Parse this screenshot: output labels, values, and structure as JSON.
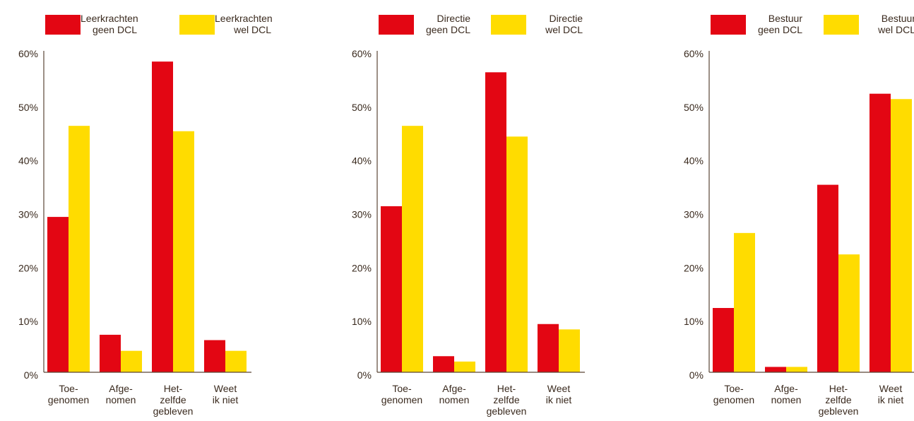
{
  "colors": {
    "geen": "#e30613",
    "wel": "#ffdc00",
    "axis": "#5a4636",
    "text": "#3a2a1e"
  },
  "chart_data": [
    {
      "type": "bar",
      "categories": [
        [
          "Toe-",
          "genomen"
        ],
        [
          "Afge-",
          "nomen"
        ],
        [
          "Het-",
          "zelfde",
          "gebleven"
        ],
        [
          "Weet",
          "ik niet"
        ]
      ],
      "yticks": [
        "0%",
        "10%",
        "20%",
        "30%",
        "40%",
        "50%",
        "60%"
      ],
      "ylim": [
        0,
        60
      ],
      "legend": "top",
      "series": [
        {
          "name": [
            "Leerkrachten",
            "geen DCL"
          ],
          "values": [
            29,
            7,
            58,
            6
          ]
        },
        {
          "name": [
            "Leerkrachten",
            "wel DCL"
          ],
          "values": [
            46,
            4,
            45,
            4
          ]
        }
      ]
    },
    {
      "type": "bar",
      "categories": [
        [
          "Toe-",
          "genomen"
        ],
        [
          "Afge-",
          "nomen"
        ],
        [
          "Het-",
          "zelfde",
          "gebleven"
        ],
        [
          "Weet",
          "ik niet"
        ]
      ],
      "yticks": [
        "0%",
        "10%",
        "20%",
        "30%",
        "40%",
        "50%",
        "60%"
      ],
      "ylim": [
        0,
        60
      ],
      "legend": "top",
      "series": [
        {
          "name": [
            "Directie",
            "geen DCL"
          ],
          "values": [
            31,
            3,
            56,
            9
          ]
        },
        {
          "name": [
            "Directie",
            "wel DCL"
          ],
          "values": [
            46,
            2,
            44,
            8
          ]
        }
      ]
    },
    {
      "type": "bar",
      "categories": [
        [
          "Toe-",
          "genomen"
        ],
        [
          "Afge-",
          "nomen"
        ],
        [
          "Het-",
          "zelfde",
          "gebleven"
        ],
        [
          "Weet",
          "ik niet"
        ]
      ],
      "yticks": [
        "0%",
        "10%",
        "20%",
        "30%",
        "40%",
        "50%",
        "60%"
      ],
      "ylim": [
        0,
        60
      ],
      "legend": "top",
      "series": [
        {
          "name": [
            "Bestuur",
            "geen DCL"
          ],
          "values": [
            12,
            1,
            35,
            52
          ]
        },
        {
          "name": [
            "Bestuur",
            "wel DCL"
          ],
          "values": [
            26,
            1,
            22,
            51
          ]
        }
      ]
    }
  ]
}
